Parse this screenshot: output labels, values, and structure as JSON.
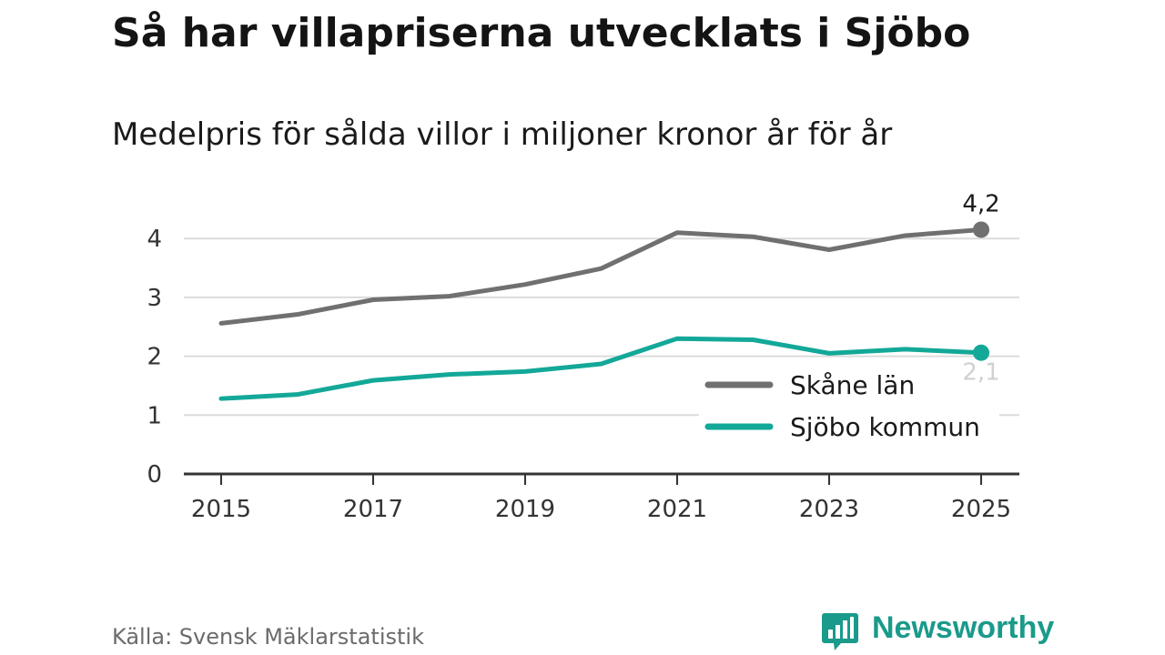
{
  "title": "Så har villapriserna utvecklats i Sjöbo",
  "subtitle": "Medelpris för sålda villor i miljoner kronor år för år",
  "source": "Källa: Svensk Mäklarstatistik",
  "brand": {
    "name": "Newsworthy",
    "icon": "newsworthy-logo-icon",
    "color": "#1a9a8a"
  },
  "chart_data": {
    "type": "line",
    "x": [
      2015,
      2016,
      2017,
      2018,
      2019,
      2020,
      2021,
      2022,
      2023,
      2024,
      2025
    ],
    "xticks": [
      "2015",
      "2017",
      "2019",
      "2021",
      "2023",
      "2025"
    ],
    "yticks": [
      "0",
      "1",
      "2",
      "3",
      "4"
    ],
    "ylim": [
      0,
      4.6
    ],
    "grid": true,
    "legend_position": "bottom-right",
    "series": [
      {
        "name": "Skåne län",
        "color": "#707070",
        "values": [
          2.56,
          2.71,
          2.96,
          3.02,
          3.22,
          3.49,
          4.1,
          4.03,
          3.81,
          4.05,
          4.15
        ],
        "end_label": "4,2",
        "end_label_color": "#1a1a1a"
      },
      {
        "name": "Sjöbo kommun",
        "color": "#13a898",
        "values": [
          1.28,
          1.35,
          1.59,
          1.69,
          1.74,
          1.87,
          2.3,
          2.28,
          2.05,
          2.12,
          2.06
        ],
        "end_label": "2,1",
        "end_label_color": "#d0d0d0"
      }
    ]
  }
}
